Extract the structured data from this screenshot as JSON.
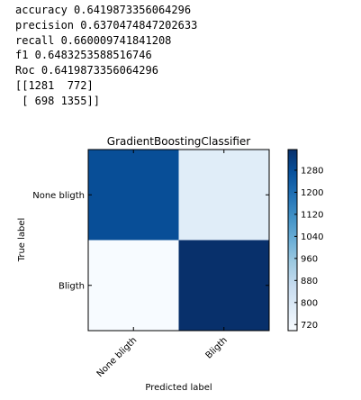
{
  "output": {
    "accuracy": "accuracy 0.6419873356064296",
    "precision": "precision 0.6370474847202633",
    "recall": "recall 0.660009741841208",
    "f1": "f1 0.6483253588516746",
    "roc": "Roc 0.6419873356064296",
    "matrix_row_1": "[[1281  772]",
    "matrix_row_2": " [ 698 1355]]"
  },
  "chart_data": {
    "type": "heatmap",
    "title": "GradientBoostingClassifier",
    "xlabel": "Predicted label",
    "ylabel": "True label",
    "x_categories": [
      "None bligth",
      "Bligth"
    ],
    "y_categories": [
      "None bligth",
      "Bligth"
    ],
    "values": [
      [
        1281,
        772
      ],
      [
        698,
        1355
      ]
    ],
    "colormap": "Blues",
    "colorbar": {
      "min": 698,
      "max": 1355,
      "ticks": [
        "720",
        "800",
        "880",
        "960",
        "1040",
        "1120",
        "1200",
        "1280"
      ]
    }
  }
}
